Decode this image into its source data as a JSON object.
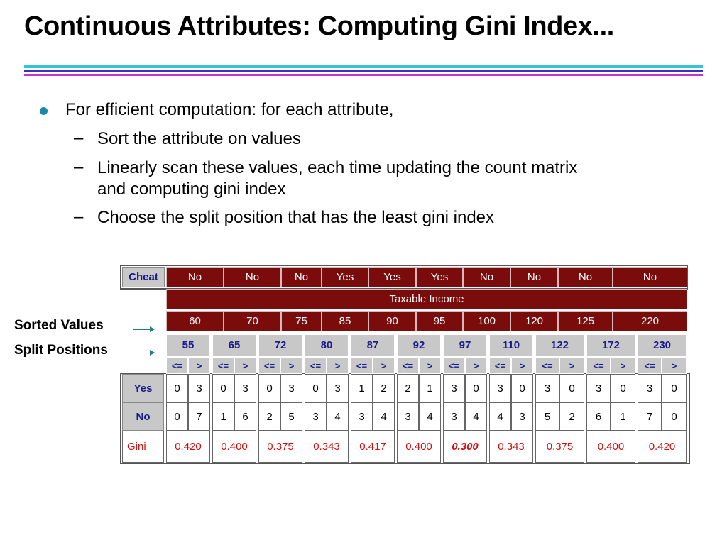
{
  "title": "Continuous Attributes: Computing Gini Index...",
  "bullets": {
    "main": "For efficient computation: for each attribute,",
    "subs": [
      "Sort the attribute on values",
      "Linearly scan these values, each time updating the count matrix",
      "and computing gini index",
      "Choose the split position that has the least gini index"
    ]
  },
  "labels": {
    "sorted_values": "Sorted Values",
    "split_positions": "Split Positions"
  },
  "table": {
    "cheat_header": "Cheat",
    "cheat": [
      "No",
      "No",
      "No",
      "Yes",
      "Yes",
      "Yes",
      "No",
      "No",
      "No",
      "No"
    ],
    "taxable_income_header": "Taxable Income",
    "sorted_values": [
      "60",
      "70",
      "75",
      "85",
      "90",
      "95",
      "100",
      "120",
      "125",
      "220"
    ],
    "split_positions": [
      "55",
      "65",
      "72",
      "80",
      "87",
      "92",
      "97",
      "110",
      "122",
      "172",
      "230"
    ],
    "le": "<=",
    "gt": ">",
    "row_labels": {
      "yes": "Yes",
      "no": "No",
      "gini": "Gini"
    },
    "yes_counts": [
      [
        "0",
        "3"
      ],
      [
        "0",
        "3"
      ],
      [
        "0",
        "3"
      ],
      [
        "0",
        "3"
      ],
      [
        "1",
        "2"
      ],
      [
        "2",
        "1"
      ],
      [
        "3",
        "0"
      ],
      [
        "3",
        "0"
      ],
      [
        "3",
        "0"
      ],
      [
        "3",
        "0"
      ],
      [
        "3",
        "0"
      ]
    ],
    "no_counts": [
      [
        "0",
        "7"
      ],
      [
        "1",
        "6"
      ],
      [
        "2",
        "5"
      ],
      [
        "3",
        "4"
      ],
      [
        "3",
        "4"
      ],
      [
        "3",
        "4"
      ],
      [
        "3",
        "4"
      ],
      [
        "4",
        "3"
      ],
      [
        "5",
        "2"
      ],
      [
        "6",
        "1"
      ],
      [
        "7",
        "0"
      ]
    ],
    "gini": [
      "0.420",
      "0.400",
      "0.375",
      "0.343",
      "0.417",
      "0.400",
      "0.300",
      "0.343",
      "0.375",
      "0.400",
      "0.420"
    ],
    "best_split_index": 6
  }
}
